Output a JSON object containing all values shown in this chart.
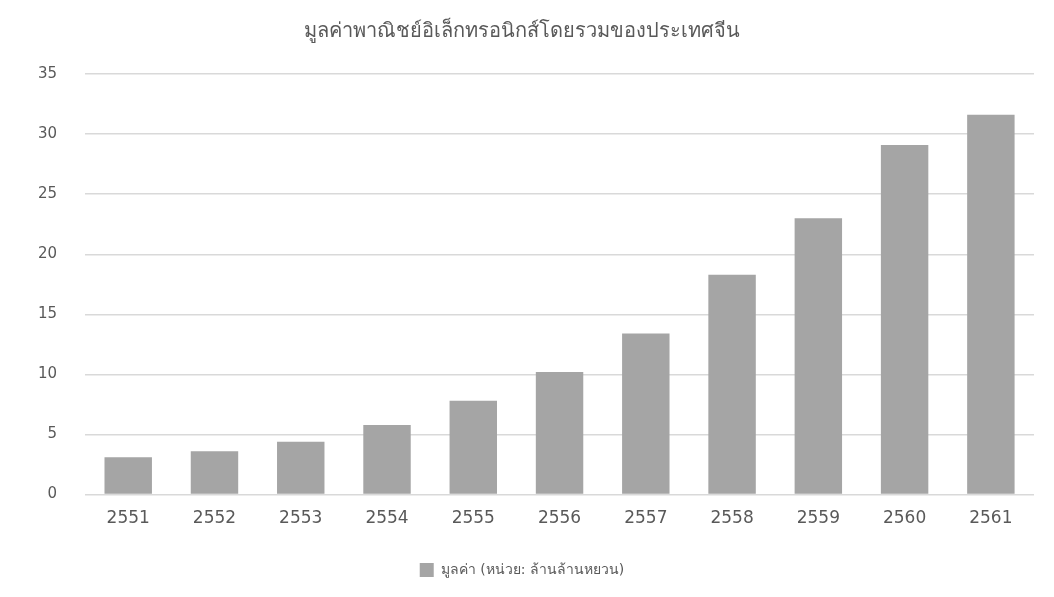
{
  "chart_data": {
    "type": "bar",
    "title": "มูลค่าพาณิชย์อิเล็กทรอนิกส์โดยรวมของประเทศจีน",
    "categories": [
      "2551",
      "2552",
      "2553",
      "2554",
      "2555",
      "2556",
      "2557",
      "2558",
      "2559",
      "2560",
      "2561"
    ],
    "series": [
      {
        "name": "มูลค่า (หน่วย: ล้านล้านหยวน)",
        "color": "#a5a5a5",
        "values": [
          3.1,
          3.6,
          4.4,
          5.8,
          7.8,
          10.2,
          13.4,
          18.3,
          23.0,
          29.1,
          31.6
        ]
      }
    ],
    "ylim": [
      0,
      35
    ],
    "yticks": [
      0,
      5,
      10,
      15,
      20,
      25,
      30,
      35
    ],
    "grid": "y",
    "legend": "bottom"
  }
}
